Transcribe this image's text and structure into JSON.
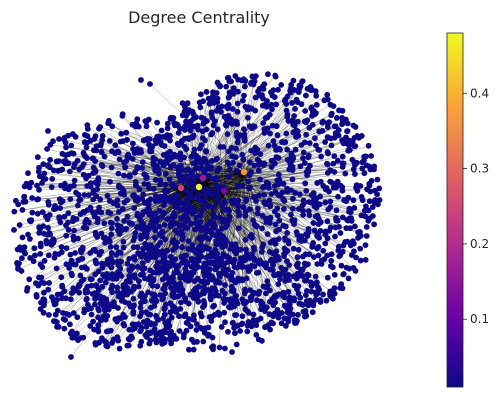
{
  "chart_data": {
    "type": "scatter",
    "subtype": "network-graph",
    "title": "Degree Centrality",
    "xlabel": "",
    "ylabel": "",
    "axes_visible": false,
    "grid": false,
    "legend": "none",
    "node_color": "#0d0887",
    "edge_color": "#000000",
    "colorbar": {
      "position": "right",
      "colormap": "plasma",
      "min": 0.01,
      "max": 0.48,
      "ticks": [
        0.1,
        0.2,
        0.3,
        0.4
      ],
      "tick_labels": [
        "0.1",
        "0.2",
        "0.3",
        "0.4"
      ],
      "stops": [
        "#0d0887",
        "#6a00a8",
        "#b12a90",
        "#e16462",
        "#fca636",
        "#f0f921"
      ]
    },
    "highlighted_nodes": [
      {
        "value": 0.48,
        "color": "#f0f921"
      },
      {
        "value": 0.34,
        "color": "#f89441"
      },
      {
        "value": 0.27,
        "color": "#cc4778"
      },
      {
        "value": 0.22,
        "color": "#9c179e"
      },
      {
        "value": 0.2,
        "color": "#7e03a8"
      }
    ]
  }
}
